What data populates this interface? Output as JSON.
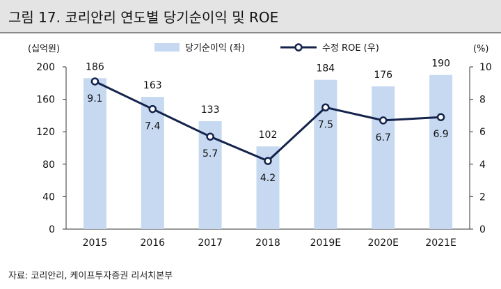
{
  "header": {
    "title": "그림 17. 코리안리 연도별 당기순이익 및 ROE"
  },
  "source": "자료: 코리안리, 케이프투자증권 리서치본부",
  "chart_data": {
    "type": "bar+line",
    "categories": [
      "2015",
      "2016",
      "2017",
      "2018",
      "2019E",
      "2020E",
      "2021E"
    ],
    "series": [
      {
        "name": "당기순이익 (좌)",
        "type": "bar",
        "axis": "left",
        "values": [
          186,
          163,
          133,
          102,
          184,
          176,
          190
        ],
        "color": "#c6d9f1"
      },
      {
        "name": "수정 ROE (우)",
        "type": "line",
        "axis": "right",
        "values": [
          9.1,
          7.4,
          5.7,
          4.2,
          7.5,
          6.7,
          6.9
        ],
        "color": "#14234b"
      }
    ],
    "y_left": {
      "label": "(십억원)",
      "ylim": [
        0,
        200
      ],
      "ticks": [
        0,
        40,
        80,
        120,
        160,
        200
      ]
    },
    "y_right": {
      "label": "(%)",
      "ylim": [
        0,
        10
      ],
      "ticks": [
        0,
        2,
        4,
        6,
        8,
        10
      ]
    },
    "legend": "top-center",
    "grid": false
  }
}
